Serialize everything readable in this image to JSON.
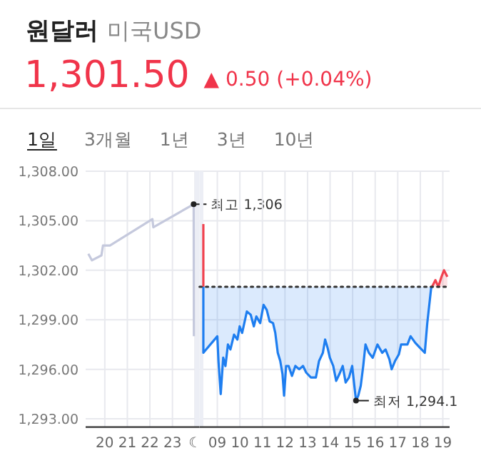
{
  "chart_data": [
    {
      "type": "line",
      "title": "원달러",
      "subtitle": "미국USD",
      "annotations": [
        "1,301.50",
        "▲ 0.50 (+0.04%)",
        "1일",
        "3개월",
        "1년",
        "3년",
        "10년",
        {
          "text": "최고 1,306",
          "x": 23.94,
          "y": 1306.0
        }
      ],
      "xlim": [
        19.15,
        24.2
      ],
      "ylim": [
        1292.5,
        1308.0
      ],
      "xticks": [
        20,
        21,
        22,
        23,
        {
          "value": 24,
          "label": "☾"
        }
      ],
      "yticks": [
        {
          "value": 1293,
          "label": "1,293.00"
        },
        {
          "value": 1296,
          "label": "1,296.00"
        },
        {
          "value": 1299,
          "label": "1,299.00"
        },
        {
          "value": 1302,
          "label": "1,302.00"
        },
        {
          "value": 1305,
          "label": "1,305.00"
        },
        {
          "value": 1308,
          "label": "1,308.00"
        }
      ],
      "grid": true,
      "bands": [
        {
          "axis": "x",
          "from": 23.99,
          "to": 24.2,
          "color": "#eceef5"
        }
      ],
      "series": [
        {
          "color": "#c5c9dd",
          "x": [
            19.27,
            19.43,
            19.85,
            19.92,
            20.23,
            22.11,
            22.15,
            23.94,
            23.95
          ],
          "values": [
            1303.0,
            1302.6,
            1302.9,
            1303.5,
            1303.5,
            1305.1,
            1304.6,
            1306.0,
            1298.0
          ]
        }
      ]
    },
    {
      "type": "area",
      "annotations": [
        {
          "text": "최저 1,294.1",
          "x": 15.15,
          "y": 1294.1
        }
      ],
      "xlim": [
        8.21,
        19.3
      ],
      "ylim": [
        1292.5,
        1308.0
      ],
      "xticks": [
        {
          "value": 9,
          "label": "09"
        },
        10,
        11,
        12,
        13,
        14,
        15,
        16,
        17,
        18,
        19
      ],
      "yticks": [
        1293,
        1296,
        1299,
        1302,
        1305,
        1308
      ],
      "tick_labels": "x",
      "grid": true,
      "bands": [
        {
          "axis": "x",
          "from": 8.21,
          "to": 8.38,
          "color": "#eceef5"
        }
      ],
      "ref_lines": [
        {
          "axis": "y",
          "value": 1301.0,
          "line_style": "dotted",
          "color": "#333333"
        }
      ],
      "series": [
        {
          "type": "line",
          "color": "#f0424f",
          "x": [
            8.38,
            8.38
          ],
          "values": [
            1301.0,
            1304.8
          ]
        },
        {
          "color": "#1e7ef0",
          "x": [
            8.38,
            8.38,
            9.0,
            9.05,
            9.15,
            9.26,
            9.36,
            9.47,
            9.58,
            9.74,
            9.89,
            9.99,
            10.1,
            10.31,
            10.48,
            10.62,
            10.73,
            10.9,
            11.05,
            11.19,
            11.32,
            11.47,
            11.57,
            11.68,
            11.79,
            11.89,
            11.96,
            12.05,
            12.16,
            12.31,
            12.46,
            12.63,
            12.8,
            12.94,
            13.15,
            13.37,
            13.51,
            13.68,
            13.78,
            13.89,
            13.99,
            14.14,
            14.27,
            14.41,
            14.56,
            14.69,
            14.84,
            14.98,
            15.1,
            15.15,
            15.25,
            15.36,
            15.47,
            15.57,
            15.72,
            15.89,
            16.1,
            16.31,
            16.46,
            16.63,
            16.73,
            16.88,
            17.05,
            17.15,
            17.43,
            17.57,
            17.78,
            17.99,
            18.2,
            18.31,
            18.48,
            18.52
          ],
          "values": [
            1301.0,
            1297.0,
            1298.0,
            1296.5,
            1294.5,
            1296.7,
            1296.2,
            1297.5,
            1297.2,
            1298.1,
            1297.8,
            1298.6,
            1298.2,
            1299.5,
            1299.3,
            1298.6,
            1299.2,
            1298.8,
            1299.9,
            1299.6,
            1298.9,
            1298.8,
            1298.2,
            1297.0,
            1296.5,
            1295.7,
            1294.4,
            1296.2,
            1296.2,
            1295.6,
            1296.2,
            1296.0,
            1296.2,
            1295.8,
            1295.5,
            1295.5,
            1296.5,
            1297.0,
            1297.8,
            1297.3,
            1296.7,
            1296.2,
            1295.3,
            1295.7,
            1296.2,
            1295.2,
            1295.5,
            1296.2,
            1294.7,
            1294.1,
            1294.4,
            1295.0,
            1296.2,
            1297.5,
            1297.0,
            1296.7,
            1297.5,
            1297.0,
            1297.2,
            1296.6,
            1296.0,
            1296.5,
            1296.9,
            1297.5,
            1297.5,
            1298.0,
            1297.6,
            1297.3,
            1297.0,
            1298.8,
            1300.9,
            1301.0
          ]
        },
        {
          "color": "#f0424f",
          "x": [
            18.52,
            18.67,
            18.8,
            18.94,
            19.05,
            19.2
          ],
          "values": [
            1301.0,
            1301.4,
            1301.0,
            1301.6,
            1302.0,
            1301.6
          ]
        }
      ]
    }
  ]
}
